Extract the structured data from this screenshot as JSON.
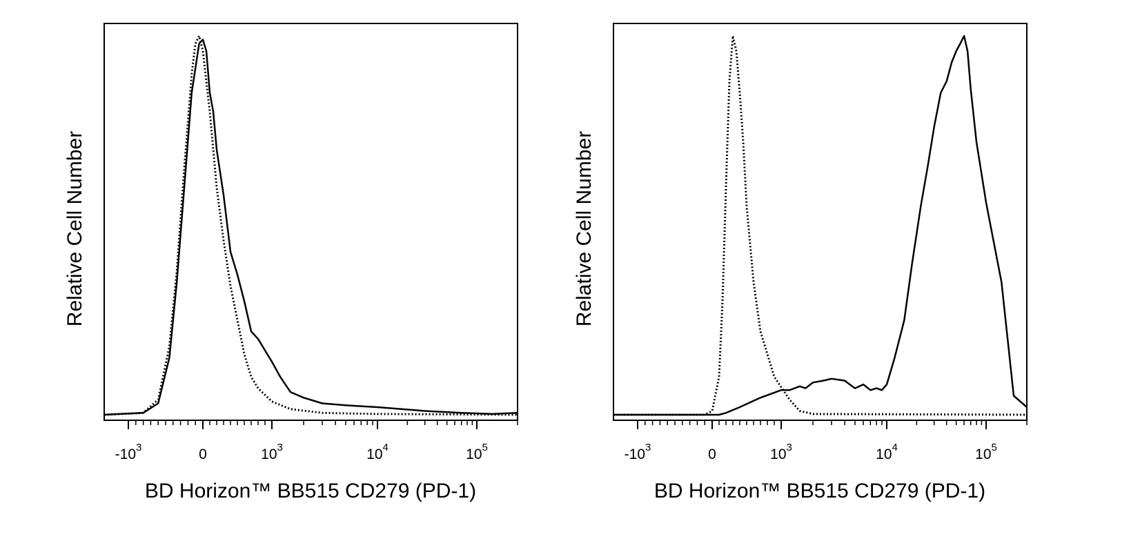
{
  "chart_data": [
    {
      "type": "line",
      "panel": "left",
      "xlabel": "BD Horizon™ BB515 CD279 (PD-1)",
      "ylabel": "Relative Cell Number",
      "x_scale": "biexponential",
      "xlim": [
        -2000,
        200000
      ],
      "ylim": [
        0,
        1
      ],
      "x_ticks": [
        {
          "value": -1000,
          "mantissa": "-10",
          "exp": "3"
        },
        {
          "value": 0,
          "mantissa": "0",
          "exp": ""
        },
        {
          "value": 1000,
          "mantissa": "10",
          "exp": "3"
        },
        {
          "value": 10000,
          "mantissa": "10",
          "exp": "4"
        },
        {
          "value": 100000,
          "mantissa": "10",
          "exp": "5"
        }
      ],
      "grid": false,
      "series": [
        {
          "style": "solid",
          "x": [
            -2000,
            -800,
            -600,
            -450,
            -350,
            -250,
            -150,
            -50,
            0,
            50,
            100,
            150,
            200,
            300,
            400,
            500,
            600,
            700,
            800,
            900,
            1000,
            1200,
            1500,
            2000,
            3000,
            5000,
            10000,
            30000,
            70000,
            130000,
            200000
          ],
          "y": [
            0,
            0.005,
            0.03,
            0.15,
            0.35,
            0.6,
            0.85,
            0.98,
            0.99,
            0.96,
            0.85,
            0.8,
            0.7,
            0.58,
            0.43,
            0.37,
            0.3,
            0.22,
            0.2,
            0.17,
            0.14,
            0.1,
            0.06,
            0.045,
            0.03,
            0.025,
            0.02,
            0.01,
            0.005,
            0.002,
            0.005
          ]
        },
        {
          "style": "dotted",
          "x": [
            -2000,
            -800,
            -600,
            -450,
            -350,
            -250,
            -150,
            -100,
            -50,
            0,
            50,
            100,
            150,
            200,
            300,
            400,
            500,
            600,
            700,
            800,
            1000,
            1500,
            3000,
            10000,
            200000
          ],
          "y": [
            0,
            0.005,
            0.04,
            0.18,
            0.38,
            0.65,
            0.9,
            0.98,
            1.0,
            0.96,
            0.88,
            0.8,
            0.7,
            0.6,
            0.46,
            0.34,
            0.25,
            0.16,
            0.1,
            0.07,
            0.035,
            0.015,
            0.005,
            0.002,
            0
          ]
        }
      ]
    },
    {
      "type": "line",
      "panel": "right",
      "xlabel": "BD Horizon™ BB515 CD279 (PD-1)",
      "ylabel": "Relative Cell Number",
      "x_scale": "biexponential",
      "xlim": [
        -2000,
        200000
      ],
      "ylim": [
        0,
        1
      ],
      "x_ticks": [
        {
          "value": -1000,
          "mantissa": "-10",
          "exp": "3"
        },
        {
          "value": 0,
          "mantissa": "0",
          "exp": ""
        },
        {
          "value": 1000,
          "mantissa": "10",
          "exp": "3"
        },
        {
          "value": 10000,
          "mantissa": "10",
          "exp": "4"
        },
        {
          "value": 100000,
          "mantissa": "10",
          "exp": "5"
        }
      ],
      "grid": false,
      "series": [
        {
          "style": "solid",
          "x": [
            -2000,
            100,
            200,
            400,
            700,
            1000,
            1200,
            1500,
            1700,
            2000,
            2500,
            3000,
            4000,
            5000,
            6000,
            7000,
            8000,
            9000,
            10000,
            12000,
            15000,
            18000,
            22000,
            26000,
            30000,
            35000,
            40000,
            45000,
            50000,
            55000,
            60000,
            65000,
            70000,
            80000,
            100000,
            130000,
            160000,
            200000
          ],
          "y": [
            0,
            0,
            0.005,
            0.02,
            0.045,
            0.065,
            0.065,
            0.075,
            0.07,
            0.085,
            0.09,
            0.095,
            0.09,
            0.07,
            0.08,
            0.065,
            0.07,
            0.065,
            0.08,
            0.15,
            0.25,
            0.4,
            0.55,
            0.66,
            0.76,
            0.85,
            0.88,
            0.93,
            0.96,
            0.98,
            1.0,
            0.96,
            0.86,
            0.72,
            0.56,
            0.35,
            0.05,
            0.02
          ]
        },
        {
          "style": "dotted",
          "x": [
            -2000,
            -100,
            0,
            100,
            150,
            200,
            250,
            300,
            350,
            400,
            450,
            500,
            600,
            700,
            900,
            1200,
            1500,
            2000,
            200000
          ],
          "y": [
            0,
            0,
            0.01,
            0.1,
            0.3,
            0.6,
            0.88,
            1.0,
            0.96,
            0.85,
            0.72,
            0.55,
            0.35,
            0.22,
            0.1,
            0.04,
            0.01,
            0.002,
            0
          ]
        }
      ]
    }
  ]
}
